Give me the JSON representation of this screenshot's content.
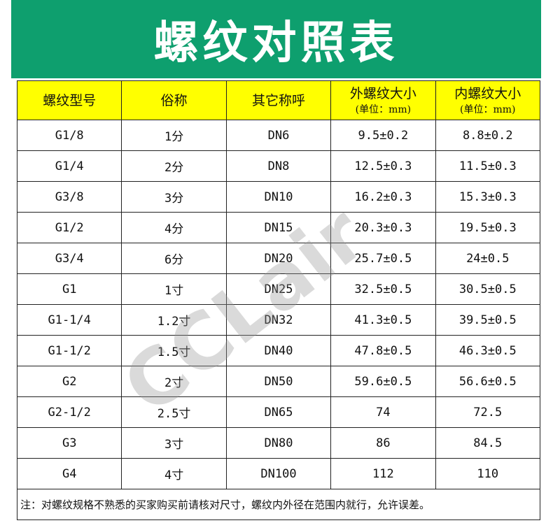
{
  "title": "螺纹对照表",
  "watermark": "CCLair",
  "headers": [
    {
      "main": "螺纹型号"
    },
    {
      "main": "俗称"
    },
    {
      "main": "其它称呼"
    },
    {
      "main": "外螺纹大小",
      "sub": "(单位：mm)"
    },
    {
      "main": "内螺纹大小",
      "sub": "(单位：mm)"
    }
  ],
  "rows": [
    [
      "G1/8",
      "1分",
      "DN6",
      "9.5±0.2",
      "8.8±0.2"
    ],
    [
      "G1/4",
      "2分",
      "DN8",
      "12.5±0.3",
      "11.5±0.3"
    ],
    [
      "G3/8",
      "3分",
      "DN10",
      "16.2±0.3",
      "15.3±0.3"
    ],
    [
      "G1/2",
      "4分",
      "DN15",
      "20.3±0.3",
      "19.5±0.3"
    ],
    [
      "G3/4",
      "6分",
      "DN20",
      "25.7±0.5",
      "24±0.5"
    ],
    [
      "G1",
      "1寸",
      "DN25",
      "32.5±0.5",
      "30.5±0.5"
    ],
    [
      "G1-1/4",
      "1.2寸",
      "DN32",
      "41.3±0.5",
      "39.5±0.5"
    ],
    [
      "G1-1/2",
      "1.5寸",
      "DN40",
      "47.8±0.5",
      "46.3±0.5"
    ],
    [
      "G2",
      "2寸",
      "DN50",
      "59.6±0.5",
      "56.6±0.5"
    ],
    [
      "G2-1/2",
      "2.5寸",
      "DN65",
      "74",
      "72.5"
    ],
    [
      "G3",
      "3寸",
      "DN80",
      "86",
      "84.5"
    ],
    [
      "G4",
      "4寸",
      "DN100",
      "112",
      "110"
    ]
  ],
  "note": "注：对螺纹规格不熟悉的买家购买前请核对尺寸，螺纹内外径在范围内就行，允许误差。",
  "colors": {
    "banner": "#0e9f6e",
    "header": "#ffff00"
  }
}
